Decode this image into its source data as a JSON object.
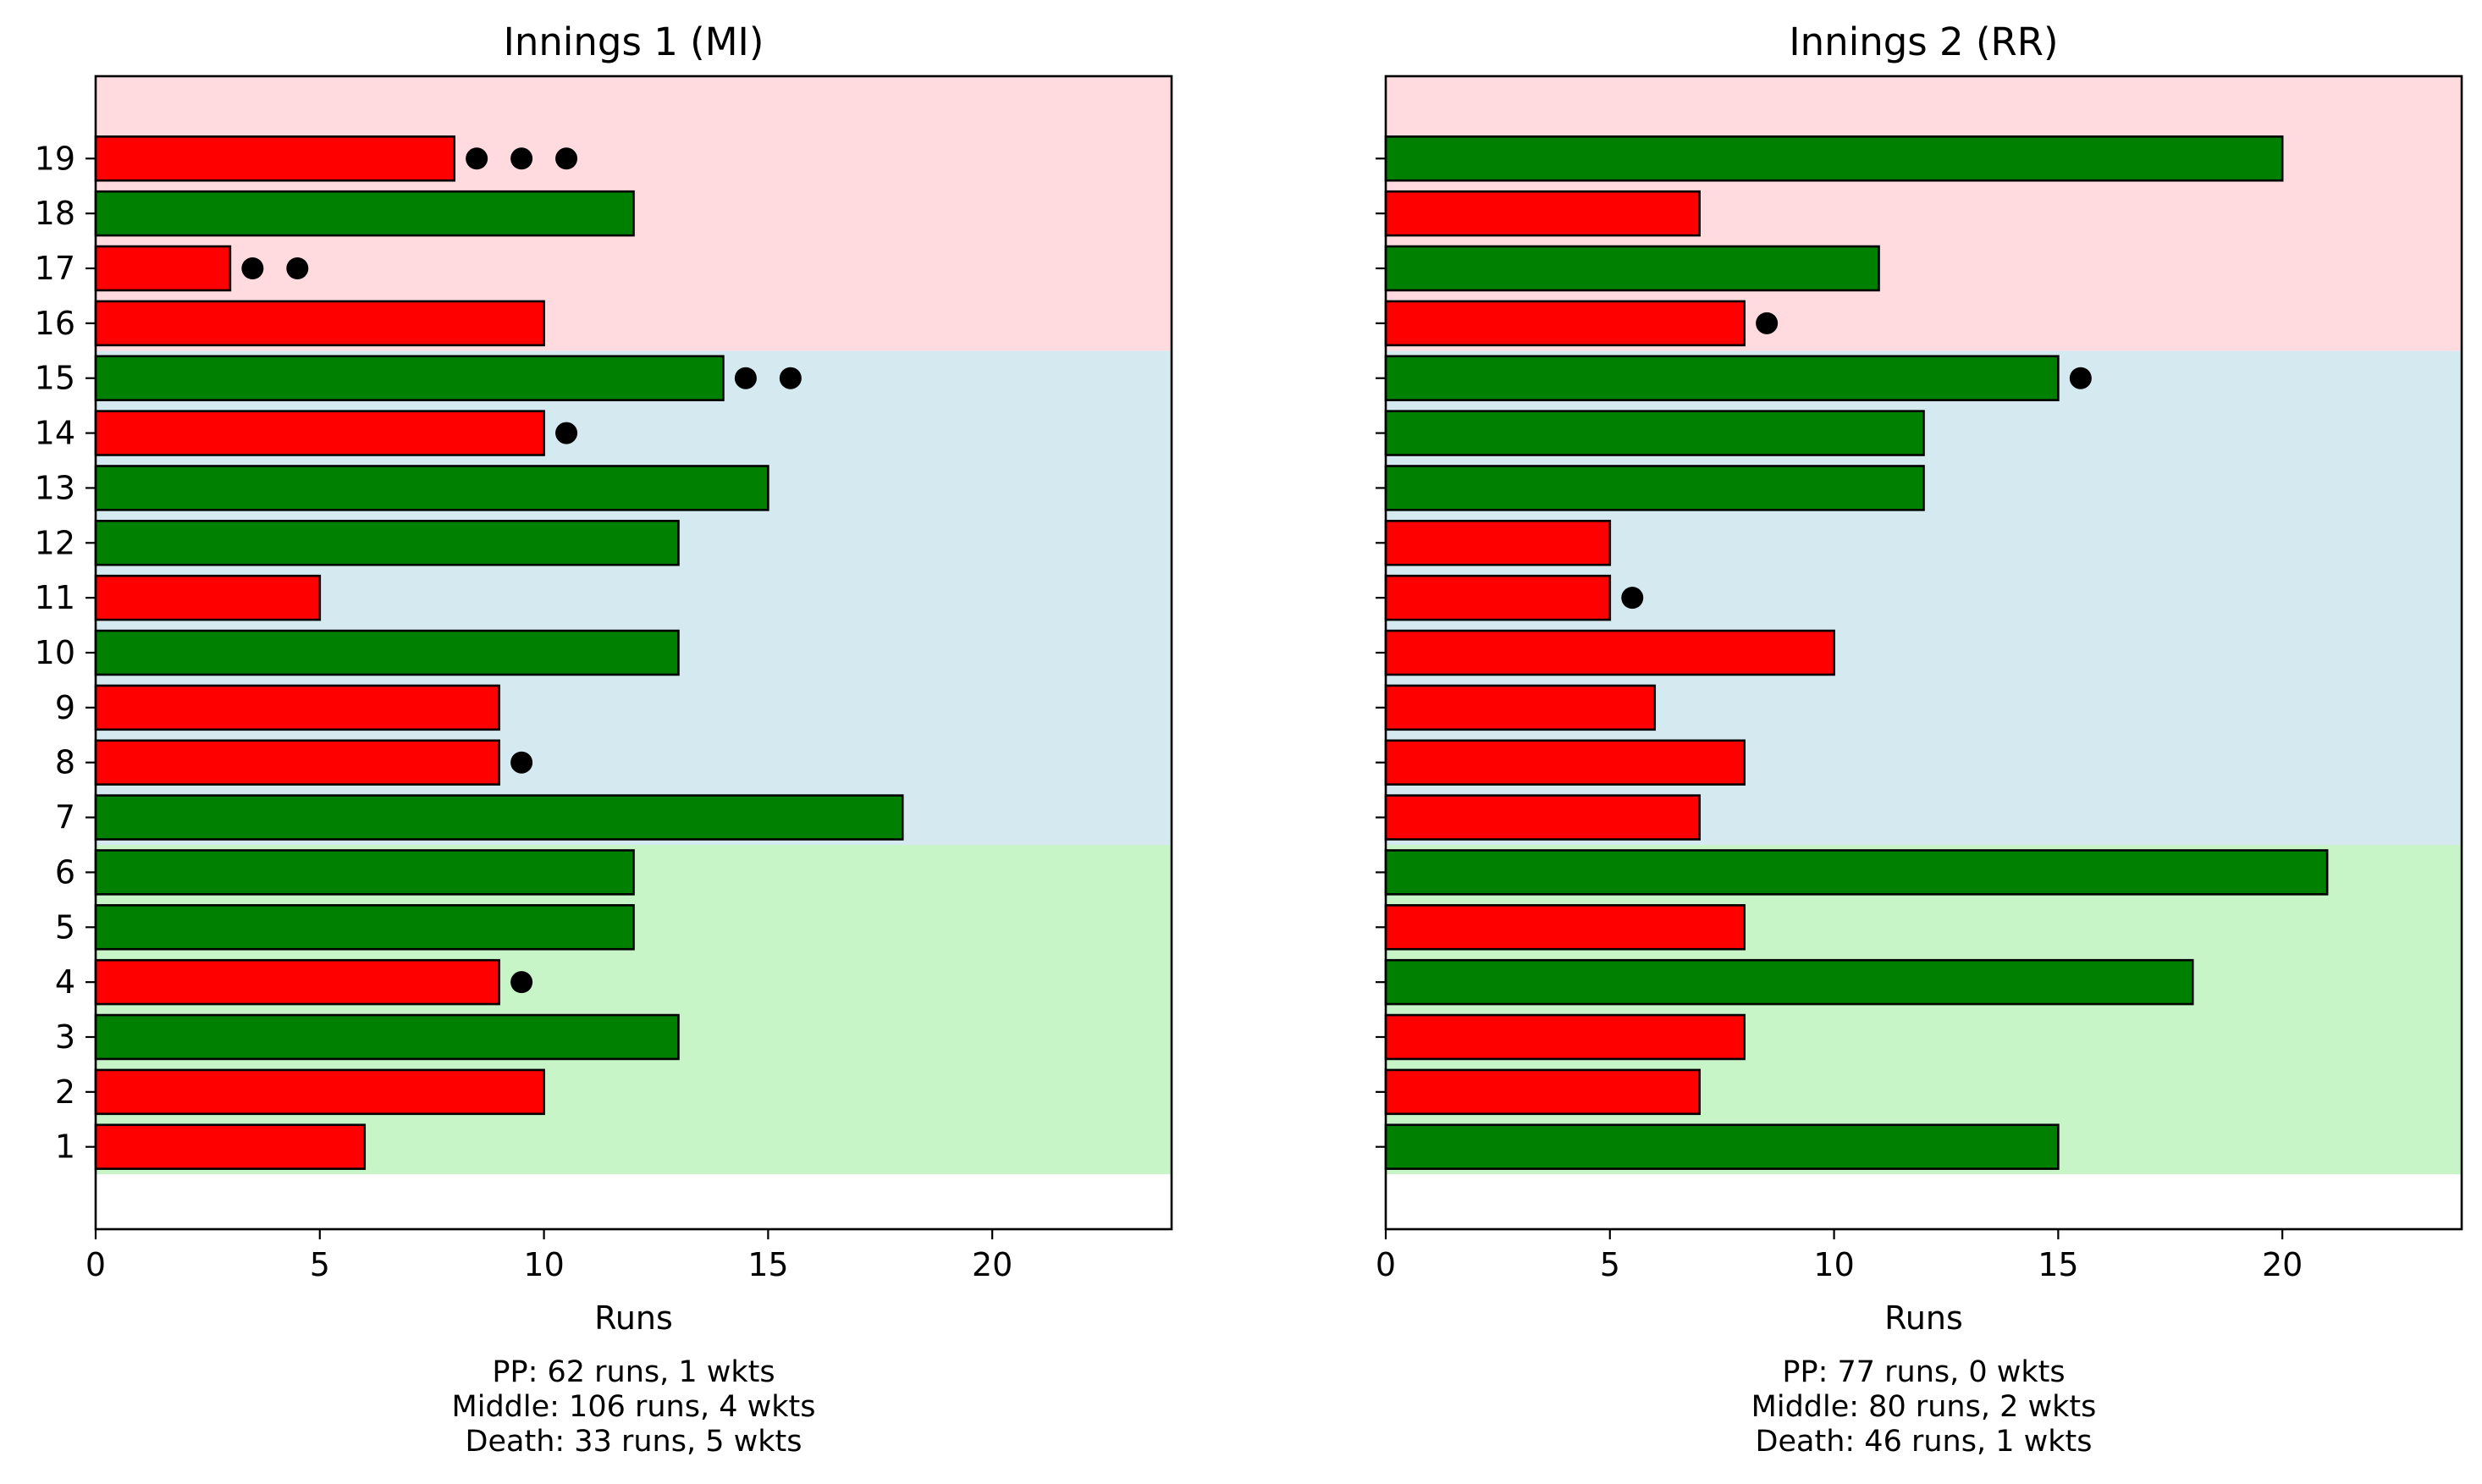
{
  "colors": {
    "boundary_over": "#008000",
    "quiet_over": "#ff0000",
    "bar_edge": "#000000",
    "wicket_marker": "#000000",
    "phase_powerplay": "#c8f5c8",
    "phase_middle": "#d5eaf0",
    "phase_death": "#ffdbe0"
  },
  "chart_data": [
    {
      "type": "bar",
      "orientation": "horizontal",
      "title": "Innings 1 (MI)",
      "xlabel": "Runs",
      "ylabel": "",
      "xlim": [
        0,
        24
      ],
      "x_ticks": [
        0,
        5,
        10,
        15,
        20
      ],
      "categories": [
        1,
        2,
        3,
        4,
        5,
        6,
        7,
        8,
        9,
        10,
        11,
        12,
        13,
        14,
        15,
        16,
        17,
        18,
        19
      ],
      "values": [
        6,
        10,
        13,
        9,
        12,
        12,
        18,
        9,
        9,
        13,
        5,
        13,
        15,
        10,
        14,
        10,
        3,
        12,
        8
      ],
      "bar_color_keys": [
        "quiet_over",
        "quiet_over",
        "boundary_over",
        "quiet_over",
        "boundary_over",
        "boundary_over",
        "boundary_over",
        "quiet_over",
        "quiet_over",
        "boundary_over",
        "quiet_over",
        "boundary_over",
        "boundary_over",
        "quiet_over",
        "boundary_over",
        "quiet_over",
        "quiet_over",
        "boundary_over",
        "quiet_over"
      ],
      "wickets": [
        0,
        0,
        0,
        1,
        0,
        0,
        0,
        1,
        0,
        0,
        0,
        0,
        0,
        1,
        2,
        0,
        2,
        0,
        3
      ],
      "phase_bands": [
        {
          "phase": "Powerplay",
          "from_over": 1,
          "to_over": 6,
          "color_key": "phase_powerplay"
        },
        {
          "phase": "Middle",
          "from_over": 7,
          "to_over": 15,
          "color_key": "phase_middle"
        },
        {
          "phase": "Death",
          "from_over": 16,
          "to_over": 20,
          "color_key": "phase_death"
        }
      ],
      "summary": [
        "PP: 62 runs, 1 wkts",
        "Middle: 106 runs, 4 wkts",
        "Death: 33 runs, 5 wkts"
      ],
      "grid": false,
      "legend": "none"
    },
    {
      "type": "bar",
      "orientation": "horizontal",
      "title": "Innings 2 (RR)",
      "xlabel": "Runs",
      "ylabel": "",
      "xlim": [
        0,
        24
      ],
      "x_ticks": [
        0,
        5,
        10,
        15,
        20
      ],
      "categories": [
        1,
        2,
        3,
        4,
        5,
        6,
        7,
        8,
        9,
        10,
        11,
        12,
        13,
        14,
        15,
        16,
        17,
        18,
        19
      ],
      "values": [
        15,
        7,
        8,
        18,
        8,
        21,
        7,
        8,
        6,
        10,
        5,
        5,
        12,
        12,
        15,
        8,
        11,
        7,
        20
      ],
      "bar_color_keys": [
        "boundary_over",
        "quiet_over",
        "quiet_over",
        "boundary_over",
        "quiet_over",
        "boundary_over",
        "quiet_over",
        "quiet_over",
        "quiet_over",
        "quiet_over",
        "quiet_over",
        "quiet_over",
        "boundary_over",
        "boundary_over",
        "boundary_over",
        "quiet_over",
        "boundary_over",
        "quiet_over",
        "boundary_over"
      ],
      "wickets": [
        0,
        0,
        0,
        0,
        0,
        0,
        0,
        0,
        0,
        0,
        1,
        0,
        0,
        0,
        1,
        1,
        0,
        0,
        0
      ],
      "phase_bands": [
        {
          "phase": "Powerplay",
          "from_over": 1,
          "to_over": 6,
          "color_key": "phase_powerplay"
        },
        {
          "phase": "Middle",
          "from_over": 7,
          "to_over": 15,
          "color_key": "phase_middle"
        },
        {
          "phase": "Death",
          "from_over": 16,
          "to_over": 20,
          "color_key": "phase_death"
        }
      ],
      "summary": [
        "PP: 77 runs, 0 wkts",
        "Middle: 80 runs, 2 wkts",
        "Death: 46 runs, 1 wkts"
      ],
      "grid": false,
      "legend": "none"
    }
  ]
}
